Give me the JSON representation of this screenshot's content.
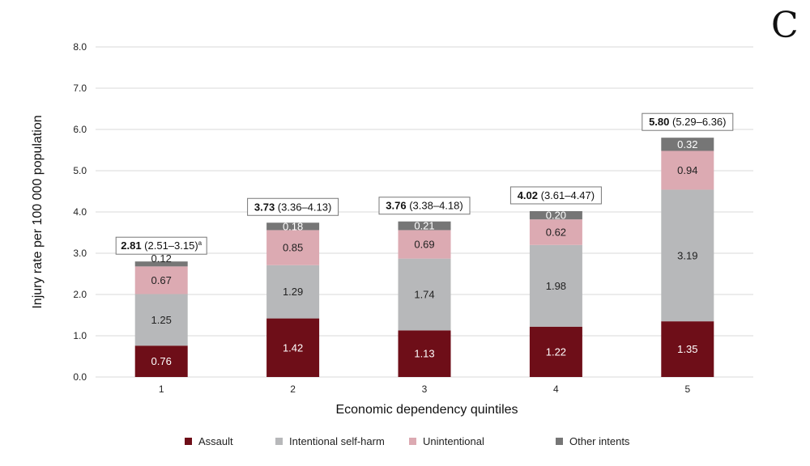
{
  "panel_letter": "C",
  "chart_data": {
    "type": "bar",
    "stacked": true,
    "title": "",
    "xlabel": "Economic dependency quintiles",
    "ylabel": "Injury rate per 100 000 population",
    "ylim": [
      0,
      8
    ],
    "yticks": [
      "0.0",
      "1.0",
      "2.0",
      "3.0",
      "4.0",
      "5.0",
      "6.0",
      "7.0",
      "8.0"
    ],
    "grid": true,
    "legend_position": "bottom",
    "categories": [
      "1",
      "2",
      "3",
      "4",
      "5"
    ],
    "series": [
      {
        "name": "Assault",
        "color": "#6e0e18",
        "label_color": "#ffffff",
        "values": [
          0.76,
          1.42,
          1.13,
          1.22,
          1.35
        ],
        "labels": [
          "0.76",
          "1.42",
          "1.13",
          "1.22",
          "1.35"
        ]
      },
      {
        "name": "Intentional self-harm",
        "color": "#b7b8ba",
        "label_color": "#222222",
        "values": [
          1.25,
          1.29,
          1.74,
          1.98,
          3.19
        ],
        "labels": [
          "1.25",
          "1.29",
          "1.74",
          "1.98",
          "3.19"
        ]
      },
      {
        "name": "Unintentional",
        "color": "#dcaab2",
        "label_color": "#222222",
        "values": [
          0.67,
          0.85,
          0.69,
          0.62,
          0.94
        ],
        "labels": [
          "0.67",
          "0.85",
          "0.69",
          "0.62",
          "0.94"
        ]
      },
      {
        "name": "Other intents",
        "color": "#767676",
        "label_color": "#ffffff",
        "values": [
          0.12,
          0.18,
          0.21,
          0.2,
          0.32
        ],
        "labels": [
          "0.12",
          "0.18",
          "0.21",
          "0.20",
          "0.32"
        ]
      }
    ],
    "totals": [
      {
        "value": "2.81",
        "ci": "(2.51–3.15)",
        "note": "a"
      },
      {
        "value": "3.73",
        "ci": "(3.36–4.13)",
        "note": ""
      },
      {
        "value": "3.76",
        "ci": "(3.38–4.18)",
        "note": ""
      },
      {
        "value": "4.02",
        "ci": "(3.61–4.47)",
        "note": ""
      },
      {
        "value": "5.80",
        "ci": "(5.29–6.36)",
        "note": ""
      }
    ]
  }
}
